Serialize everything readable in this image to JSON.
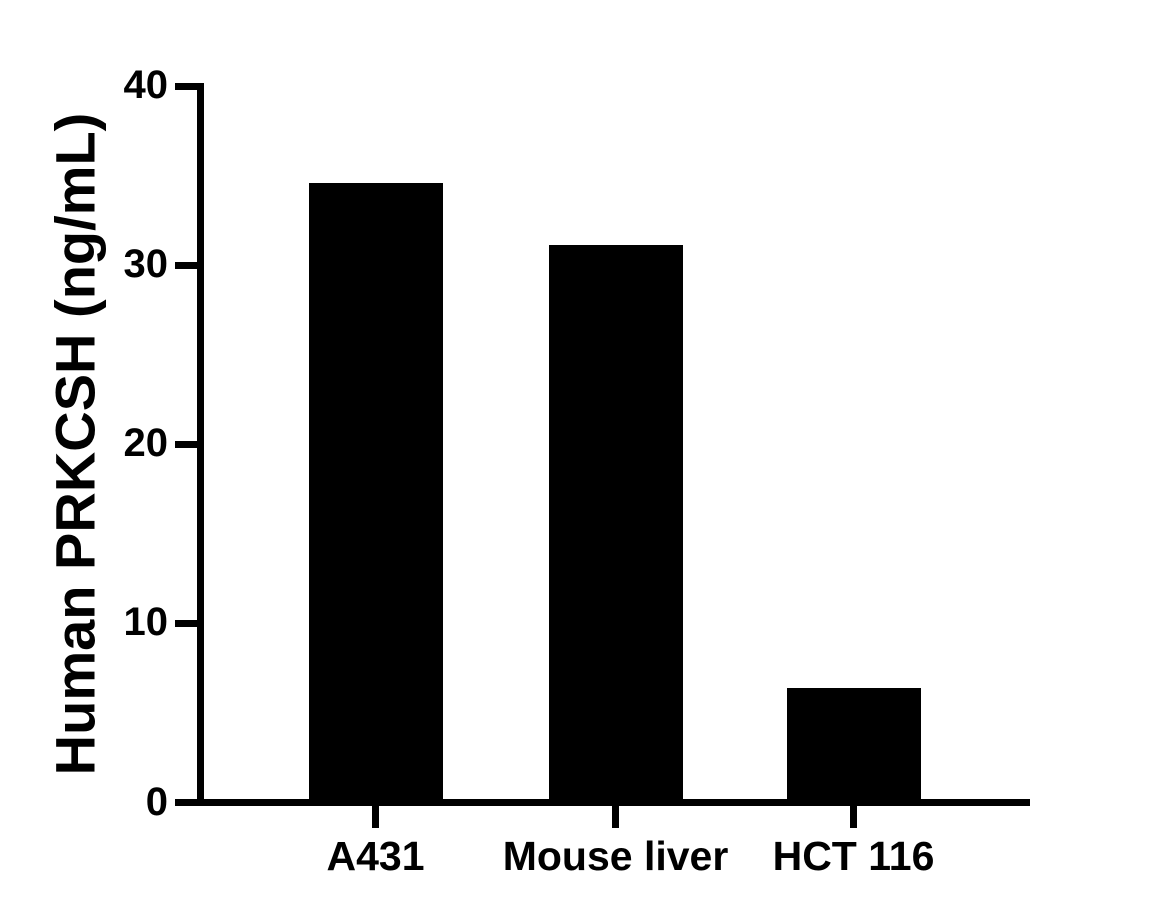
{
  "chart_data": {
    "type": "bar",
    "title": "",
    "xlabel": "",
    "ylabel": "Human PRKCSH (ng/mL)",
    "unit": "ng/mL",
    "categories": [
      "A431",
      "Mouse liver",
      "HCT 116"
    ],
    "values": [
      34.6,
      31.1,
      6.4
    ],
    "ylim": [
      0,
      40
    ],
    "yticks": [
      0,
      10,
      20,
      30,
      40
    ],
    "grid": false,
    "legend": false,
    "bar_color": "#000000",
    "axis_color": "#000000",
    "background_color": "#ffffff"
  }
}
